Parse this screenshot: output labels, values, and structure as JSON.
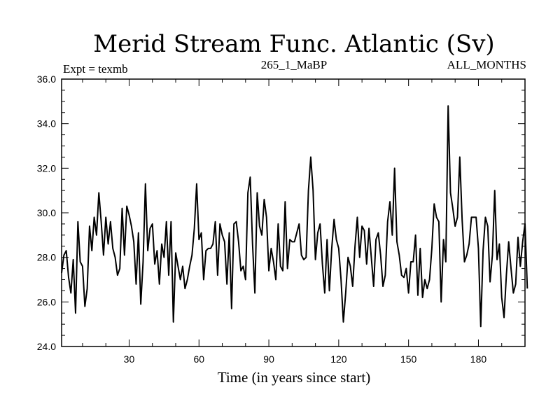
{
  "colors": {
    "background": "#ffffff",
    "foreground": "#000000"
  },
  "chart_data": {
    "type": "line",
    "title": "Merid Stream Func. Atlantic (Sv)",
    "subtitle_left": "Expt = texmb",
    "subtitle_center": "265_1_MaBP",
    "subtitle_right": "ALL_MONTHS",
    "xlabel": "Time (in years since start)",
    "ylabel": "",
    "xlim": [
      1,
      200
    ],
    "ylim": [
      24,
      36
    ],
    "x_ticks": [
      30,
      60,
      90,
      120,
      150,
      180
    ],
    "x_tick_labels": [
      "30",
      "60",
      "90",
      "120",
      "150",
      "180"
    ],
    "y_ticks": [
      24,
      26,
      28,
      30,
      32,
      34,
      36
    ],
    "y_tick_labels": [
      "24.0",
      "26.0",
      "28.0",
      "30.0",
      "32.0",
      "34.0",
      "36.0"
    ],
    "grid": false,
    "series": [
      {
        "name": "Merid Stream Func. Atlantic",
        "x_start": 1,
        "x_step": 1,
        "values": [
          27.3,
          28.1,
          28.3,
          27.1,
          26.4,
          27.9,
          25.5,
          29.6,
          27.8,
          27.6,
          25.8,
          26.6,
          29.4,
          28.3,
          29.8,
          29.0,
          30.9,
          29.6,
          28.1,
          29.8,
          28.6,
          29.6,
          28.4,
          28.0,
          27.2,
          27.5,
          30.2,
          28.1,
          30.3,
          29.9,
          29.4,
          28.7,
          26.8,
          29.1,
          25.9,
          27.8,
          31.3,
          28.3,
          29.3,
          29.5,
          27.7,
          28.3,
          26.8,
          28.6,
          28.0,
          29.6,
          27.2,
          29.6,
          25.1,
          28.2,
          27.6,
          27.0,
          27.6,
          26.6,
          27.0,
          27.6,
          28.1,
          29.3,
          31.3,
          28.8,
          29.1,
          27.0,
          28.3,
          28.4,
          28.4,
          28.6,
          29.6,
          27.2,
          29.5,
          29.0,
          28.7,
          26.8,
          29.1,
          25.7,
          29.5,
          29.6,
          28.7,
          27.4,
          27.6,
          27.0,
          30.9,
          31.6,
          28.6,
          26.4,
          30.9,
          29.4,
          29.0,
          30.6,
          29.8,
          27.4,
          28.4,
          27.8,
          27.0,
          29.5,
          27.6,
          27.4,
          30.5,
          27.5,
          28.8,
          28.7,
          28.7,
          29.1,
          29.5,
          28.1,
          27.9,
          28.0,
          31.0,
          32.5,
          31.0,
          27.9,
          29.1,
          29.5,
          27.7,
          26.4,
          28.8,
          26.5,
          28.4,
          29.7,
          28.8,
          28.4,
          27.0,
          25.1,
          26.4,
          28.0,
          27.6,
          26.7,
          28.5,
          29.8,
          28.0,
          29.4,
          29.2,
          27.7,
          29.3,
          28.0,
          26.7,
          28.8,
          29.1,
          28.1,
          26.7,
          27.2,
          29.6,
          30.5,
          29.0,
          32.0,
          28.7,
          28.1,
          27.2,
          27.1,
          27.5,
          26.4,
          27.8,
          27.8,
          29.0,
          26.3,
          28.4,
          26.2,
          27.0,
          26.6,
          27.0,
          28.4,
          30.4,
          29.8,
          29.6,
          26.0,
          28.8,
          27.8,
          34.8,
          30.9,
          30.2,
          29.4,
          29.8,
          32.5,
          29.7,
          27.8,
          28.1,
          28.6,
          29.8,
          29.8,
          29.8,
          28.4,
          24.9,
          28.3,
          29.8,
          29.4,
          26.9,
          28.1,
          31.0,
          27.9,
          28.6,
          26.2,
          25.3,
          27.2,
          28.7,
          27.5,
          26.4,
          26.8,
          28.9,
          27.6,
          28.7,
          29.5,
          26.6
        ]
      }
    ]
  }
}
